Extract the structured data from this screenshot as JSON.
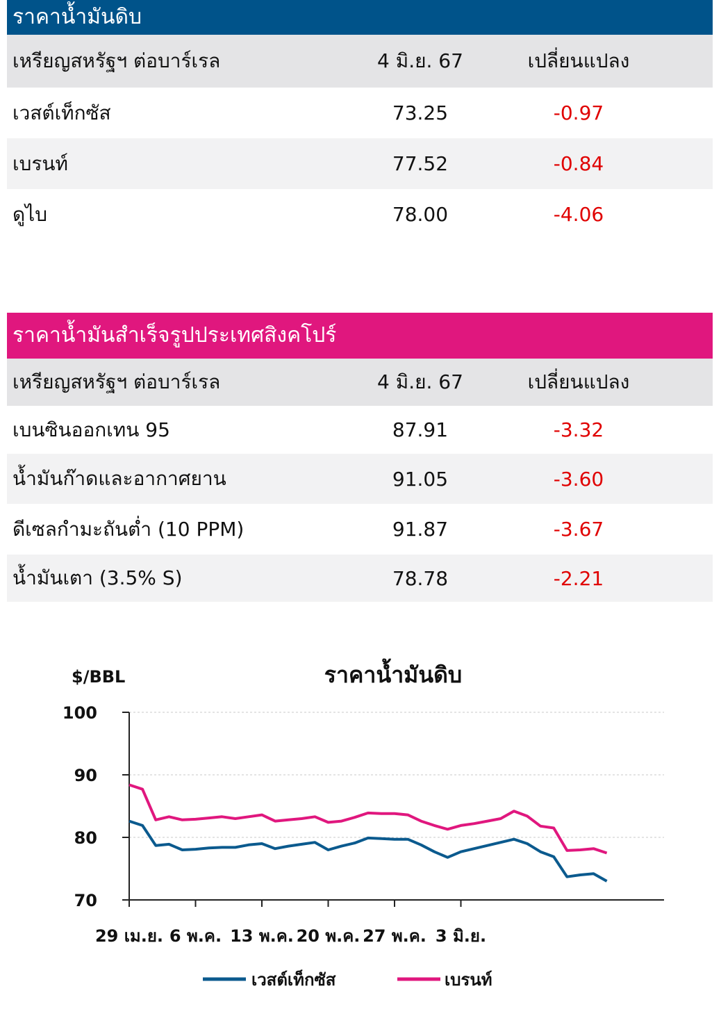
{
  "crude_table": {
    "title": "ราคาน้ำมันดิบ",
    "header": {
      "unit": "เหรียญสหรัฐฯ ต่อบาร์เรล",
      "date": "4 มิ.ย. 67",
      "change": "เปลี่ยนแปลง"
    },
    "rows": [
      {
        "name": "เวสต์เท็กซัส",
        "price": "73.25",
        "change": "-0.97"
      },
      {
        "name": "เบรนท์",
        "price": "77.52",
        "change": "-0.84"
      },
      {
        "name": "ดูไบ",
        "price": "78.00",
        "change": "-4.06"
      }
    ]
  },
  "refined_table": {
    "title": "ราคาน้ำมันสำเร็จรูปประเทศสิงคโปร์",
    "header": {
      "unit": "เหรียญสหรัฐฯ ต่อบาร์เรล",
      "date": "4 มิ.ย. 67",
      "change": "เปลี่ยนแปลง"
    },
    "rows": [
      {
        "name": "เบนซินออกเทน 95",
        "price": "87.91",
        "change": "-3.32"
      },
      {
        "name": "น้ำมันก๊าดและอากาศยาน",
        "price": "91.05",
        "change": "-3.60"
      },
      {
        "name": "ดีเซลกำมะถันต่ำ (10 PPM)",
        "price": "91.87",
        "change": "-3.67"
      },
      {
        "name": "น้ำมันเตา (3.5% S)",
        "price": "78.78",
        "change": "-2.21"
      }
    ]
  },
  "colors": {
    "crude_header": "#00538a",
    "refined_header": "#e0177e",
    "negative": "#e00000",
    "wti_line": "#0b5a8e",
    "brent_line": "#e0177e"
  },
  "chart_data": {
    "type": "line",
    "title": "ราคาน้ำมันดิบ",
    "ylabel": "$/BBL",
    "xlabel": "",
    "ylim": [
      70,
      100
    ],
    "yticks": [
      "100",
      "90",
      "80",
      "70"
    ],
    "ytick_values": [
      100,
      90,
      80,
      70
    ],
    "grid": true,
    "legend_position": "bottom",
    "xtick_labels": [
      "29 เม.ย.",
      "6 พ.ค.",
      "13 พ.ค.",
      "20 พ.ค.",
      "27 พ.ค.",
      "3 มิ.ย."
    ],
    "xtick_index": [
      0,
      5,
      10,
      15,
      20,
      25
    ],
    "series": [
      {
        "name": "เวสต์เท็กซัส",
        "color": "#0b5a8e",
        "values": [
          82.6,
          81.9,
          78.7,
          78.9,
          78.0,
          78.1,
          78.3,
          78.4,
          78.4,
          78.8,
          79.0,
          78.2,
          78.6,
          78.9,
          79.2,
          78.0,
          78.6,
          79.1,
          79.9,
          79.8,
          79.7,
          79.7,
          78.8,
          77.7,
          76.8,
          77.7,
          78.2,
          78.7,
          79.2,
          79.7,
          79.0,
          77.7,
          76.9,
          73.7,
          74.0,
          74.2,
          73.0
        ]
      },
      {
        "name": "เบรนท์",
        "color": "#e0177e",
        "values": [
          88.4,
          87.7,
          82.8,
          83.3,
          82.8,
          82.9,
          83.1,
          83.3,
          83.0,
          83.3,
          83.6,
          82.6,
          82.8,
          83.0,
          83.3,
          82.4,
          82.6,
          83.2,
          83.9,
          83.8,
          83.8,
          83.6,
          82.6,
          81.9,
          81.3,
          81.9,
          82.2,
          82.6,
          83.0,
          84.2,
          83.4,
          81.8,
          81.5,
          77.9,
          78.0,
          78.2,
          77.5
        ]
      }
    ]
  }
}
